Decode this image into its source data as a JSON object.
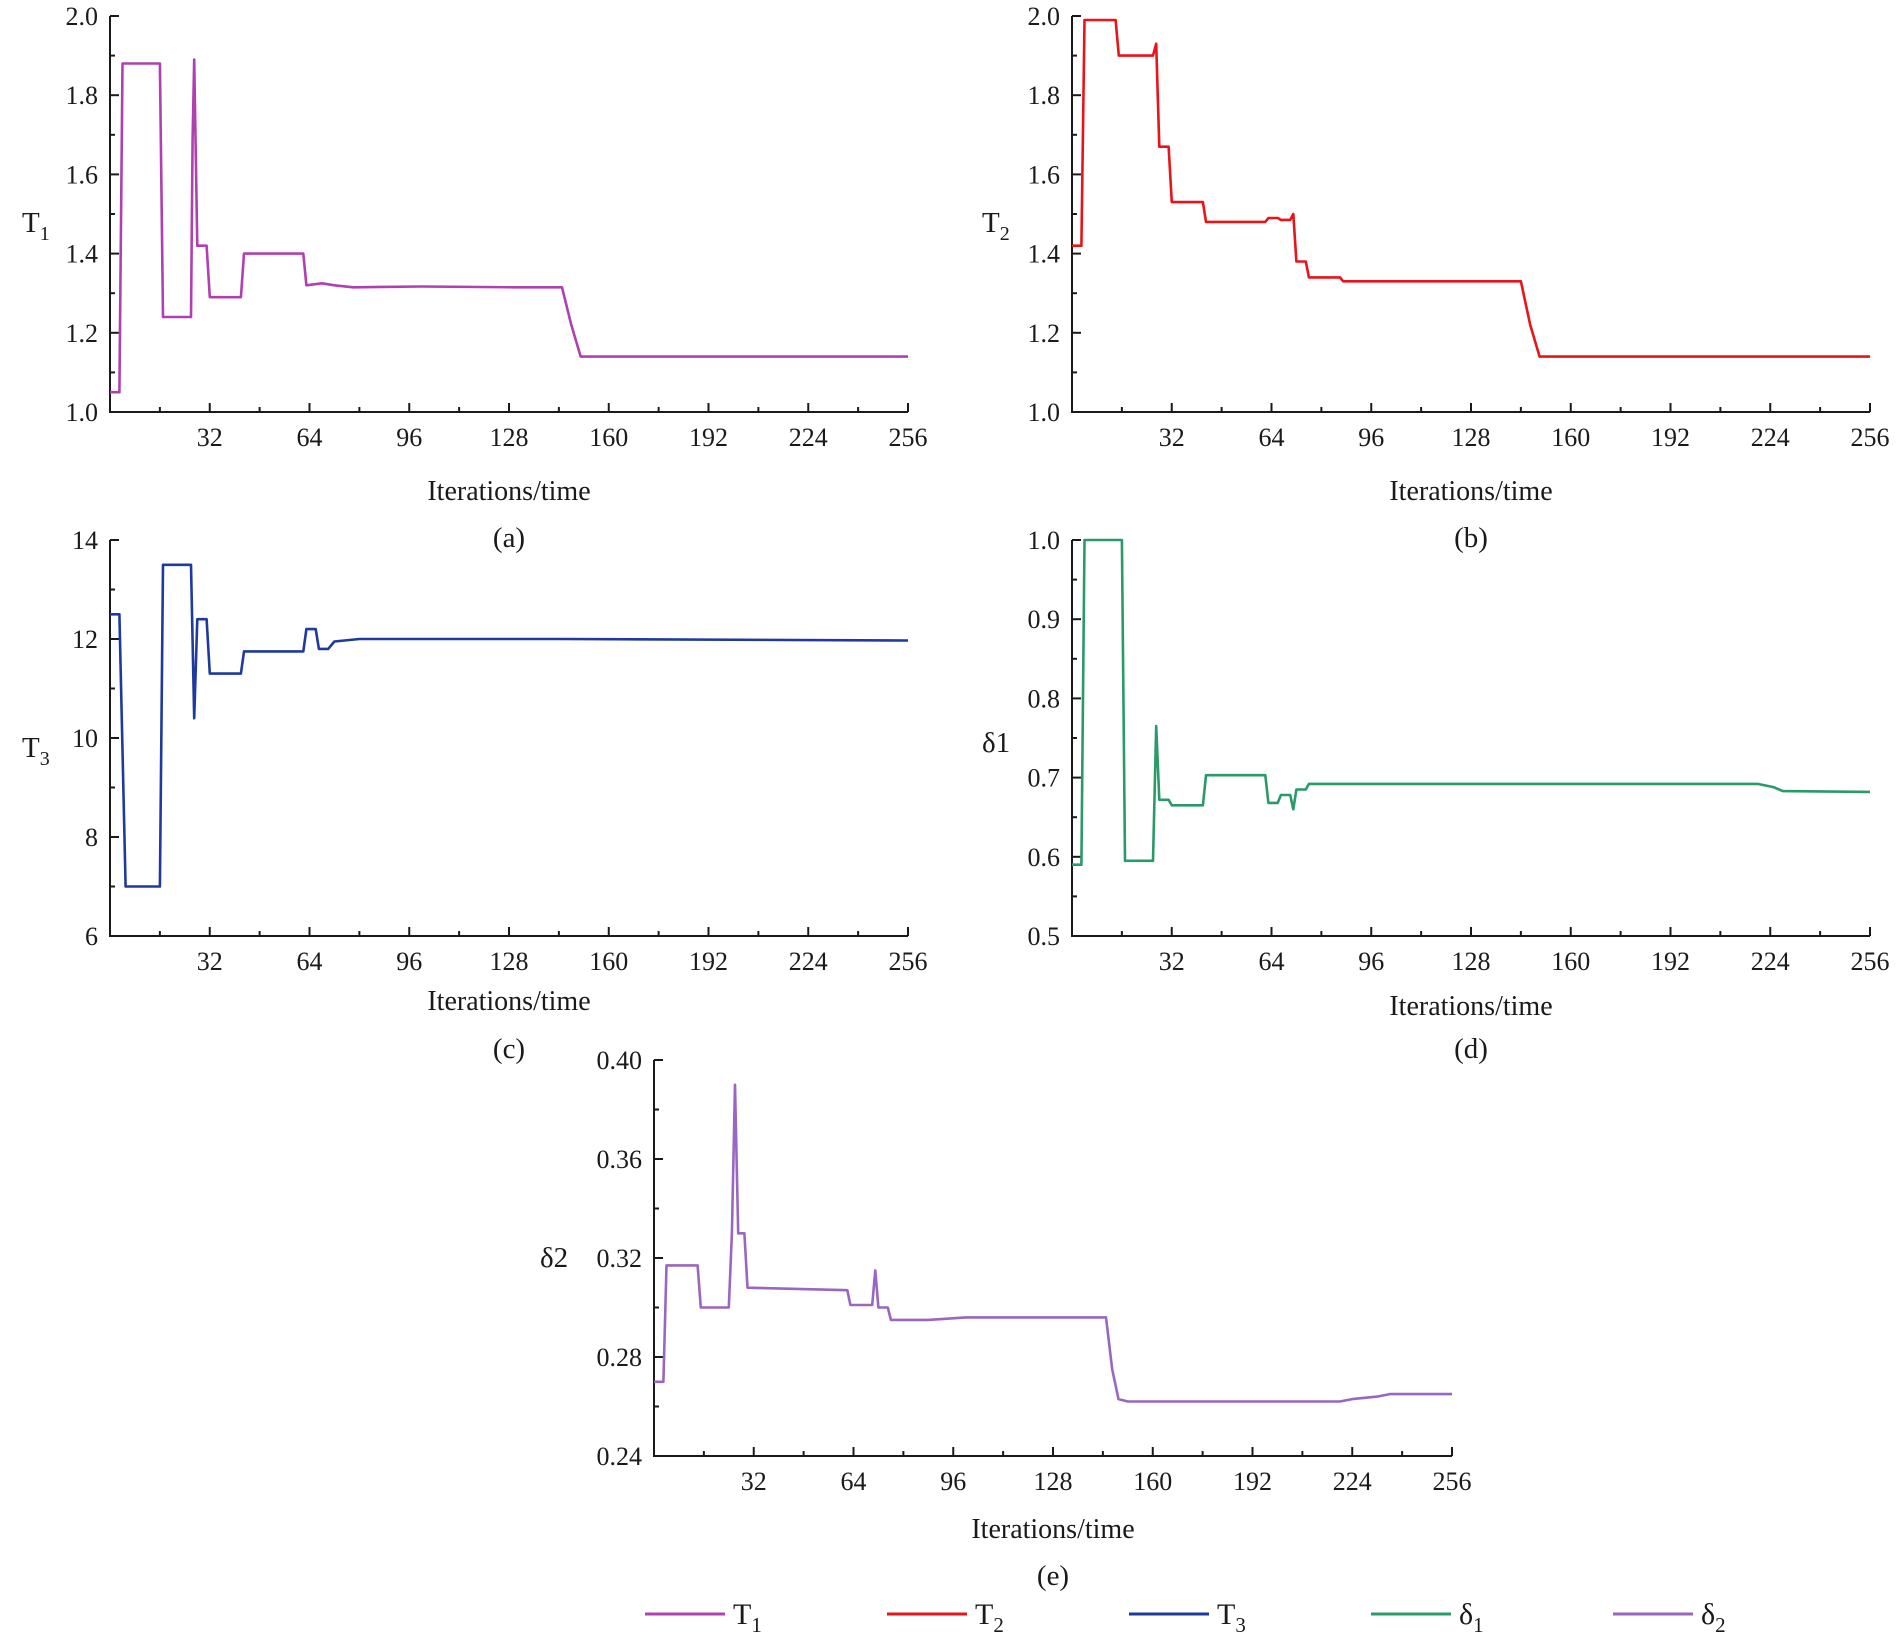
{
  "chart_data": [
    {
      "type": "line",
      "id": "a",
      "caption": "(a)",
      "ylabel": {
        "main": "T",
        "sub": "1"
      },
      "xlabel": "Iterations/time",
      "xlim": [
        0,
        256
      ],
      "ylim": [
        1.0,
        2.0
      ],
      "xticks": [
        32,
        64,
        96,
        128,
        160,
        192,
        224,
        256
      ],
      "yticks": [
        1.0,
        1.2,
        1.4,
        1.6,
        1.8,
        2.0
      ],
      "ytick_labels": [
        "1.0",
        "1.2",
        "1.4",
        "1.6",
        "1.8",
        "2.0"
      ],
      "series": {
        "name": "T1",
        "color": "#b040b0",
        "points": [
          [
            0,
            1.05
          ],
          [
            3,
            1.05
          ],
          [
            4,
            1.88
          ],
          [
            16,
            1.88
          ],
          [
            17,
            1.24
          ],
          [
            26,
            1.24
          ],
          [
            26.5,
            1.69
          ],
          [
            27,
            1.89
          ],
          [
            28,
            1.42
          ],
          [
            31,
            1.42
          ],
          [
            32,
            1.29
          ],
          [
            42,
            1.29
          ],
          [
            43,
            1.4
          ],
          [
            62,
            1.4
          ],
          [
            63,
            1.32
          ],
          [
            68,
            1.325
          ],
          [
            72,
            1.32
          ],
          [
            78,
            1.315
          ],
          [
            100,
            1.317
          ],
          [
            130,
            1.315
          ],
          [
            145,
            1.315
          ],
          [
            148,
            1.22
          ],
          [
            151,
            1.14
          ],
          [
            256,
            1.14
          ]
        ]
      }
    },
    {
      "type": "line",
      "id": "b",
      "caption": "(b)",
      "ylabel": {
        "main": "T",
        "sub": "2"
      },
      "xlabel": "Iterations/time",
      "xlim": [
        0,
        256
      ],
      "ylim": [
        1.0,
        2.0
      ],
      "xticks": [
        32,
        64,
        96,
        128,
        160,
        192,
        224,
        256
      ],
      "yticks": [
        1.0,
        1.2,
        1.4,
        1.6,
        1.8,
        2.0
      ],
      "ytick_labels": [
        "1.0",
        "1.2",
        "1.4",
        "1.6",
        "1.8",
        "2.0"
      ],
      "series": {
        "name": "T2",
        "color": "#e8141a",
        "points": [
          [
            0,
            1.42
          ],
          [
            3,
            1.42
          ],
          [
            4,
            1.99
          ],
          [
            14,
            1.99
          ],
          [
            15,
            1.9
          ],
          [
            26,
            1.9
          ],
          [
            27,
            1.93
          ],
          [
            28,
            1.67
          ],
          [
            31,
            1.67
          ],
          [
            32,
            1.53
          ],
          [
            42,
            1.53
          ],
          [
            43,
            1.48
          ],
          [
            62,
            1.48
          ],
          [
            63,
            1.49
          ],
          [
            66,
            1.49
          ],
          [
            67,
            1.485
          ],
          [
            70,
            1.485
          ],
          [
            71,
            1.5
          ],
          [
            72,
            1.38
          ],
          [
            75,
            1.38
          ],
          [
            76,
            1.34
          ],
          [
            86,
            1.34
          ],
          [
            87,
            1.33
          ],
          [
            144,
            1.33
          ],
          [
            147,
            1.22
          ],
          [
            150,
            1.14
          ],
          [
            160,
            1.14
          ],
          [
            256,
            1.14
          ]
        ]
      }
    },
    {
      "type": "line",
      "id": "c",
      "caption": "(c)",
      "ylabel": {
        "main": "T",
        "sub": "3"
      },
      "xlabel": "Iterations/time",
      "xlim": [
        0,
        256
      ],
      "ylim": [
        6,
        14
      ],
      "xticks": [
        32,
        64,
        96,
        128,
        160,
        192,
        224,
        256
      ],
      "yticks": [
        6,
        8,
        10,
        12,
        14
      ],
      "ytick_labels": [
        "6",
        "8",
        "10",
        "12",
        "14"
      ],
      "series": {
        "name": "T3",
        "color": "#1f3a9e",
        "points": [
          [
            0,
            12.5
          ],
          [
            3,
            12.5
          ],
          [
            5,
            7.0
          ],
          [
            16,
            7.0
          ],
          [
            17,
            13.5
          ],
          [
            26,
            13.5
          ],
          [
            27,
            10.4
          ],
          [
            28,
            12.4
          ],
          [
            31,
            12.4
          ],
          [
            32,
            11.3
          ],
          [
            42,
            11.3
          ],
          [
            43,
            11.75
          ],
          [
            62,
            11.75
          ],
          [
            63,
            12.2
          ],
          [
            66,
            12.2
          ],
          [
            67,
            11.8
          ],
          [
            70,
            11.8
          ],
          [
            72,
            11.95
          ],
          [
            80,
            12.0
          ],
          [
            145,
            12.0
          ],
          [
            256,
            11.97
          ]
        ]
      }
    },
    {
      "type": "line",
      "id": "d",
      "caption": "(d)",
      "ylabel": {
        "main": "δ1",
        "sub": ""
      },
      "xlabel": "Iterations/time",
      "xlim": [
        0,
        256
      ],
      "ylim": [
        0.5,
        1.0
      ],
      "xticks": [
        32,
        64,
        96,
        128,
        160,
        192,
        224,
        256
      ],
      "yticks": [
        0.5,
        0.6,
        0.7,
        0.8,
        0.9,
        1.0
      ],
      "ytick_labels": [
        "0.5",
        "0.6",
        "0.7",
        "0.8",
        "0.9",
        "1.0"
      ],
      "series": {
        "name": "δ1",
        "color": "#2a9a6a",
        "points": [
          [
            0,
            0.59
          ],
          [
            3,
            0.59
          ],
          [
            4,
            1.0
          ],
          [
            16,
            1.0
          ],
          [
            17,
            0.595
          ],
          [
            26,
            0.595
          ],
          [
            27,
            0.765
          ],
          [
            28,
            0.672
          ],
          [
            31,
            0.672
          ],
          [
            32,
            0.665
          ],
          [
            42,
            0.665
          ],
          [
            43,
            0.703
          ],
          [
            62,
            0.703
          ],
          [
            63,
            0.668
          ],
          [
            66,
            0.668
          ],
          [
            67,
            0.678
          ],
          [
            70,
            0.678
          ],
          [
            71,
            0.66
          ],
          [
            72,
            0.685
          ],
          [
            75,
            0.685
          ],
          [
            76,
            0.692
          ],
          [
            220,
            0.692
          ],
          [
            225,
            0.688
          ],
          [
            228,
            0.683
          ],
          [
            256,
            0.682
          ]
        ]
      }
    },
    {
      "type": "line",
      "id": "e",
      "caption": "(e)",
      "ylabel": {
        "main": "δ2",
        "sub": ""
      },
      "xlabel": "Iterations/time",
      "xlim": [
        0,
        256
      ],
      "ylim": [
        0.24,
        0.4
      ],
      "xticks": [
        32,
        64,
        96,
        128,
        160,
        192,
        224,
        256
      ],
      "yticks": [
        0.24,
        0.28,
        0.32,
        0.36,
        0.4
      ],
      "ytick_labels": [
        "0.24",
        "0.28",
        "0.32",
        "0.36",
        "0.40"
      ],
      "series": {
        "name": "δ2",
        "color": "#9a66c0",
        "points": [
          [
            0,
            0.27
          ],
          [
            3,
            0.27
          ],
          [
            4,
            0.317
          ],
          [
            14,
            0.317
          ],
          [
            15,
            0.3
          ],
          [
            24,
            0.3
          ],
          [
            25,
            0.33
          ],
          [
            26,
            0.39
          ],
          [
            27,
            0.33
          ],
          [
            29,
            0.33
          ],
          [
            30,
            0.308
          ],
          [
            62,
            0.307
          ],
          [
            63,
            0.301
          ],
          [
            70,
            0.301
          ],
          [
            71,
            0.315
          ],
          [
            72,
            0.3
          ],
          [
            75,
            0.3
          ],
          [
            76,
            0.295
          ],
          [
            88,
            0.295
          ],
          [
            100,
            0.296
          ],
          [
            145,
            0.296
          ],
          [
            147,
            0.275
          ],
          [
            149,
            0.263
          ],
          [
            152,
            0.262
          ],
          [
            200,
            0.262
          ],
          [
            220,
            0.262
          ],
          [
            224,
            0.263
          ],
          [
            232,
            0.264
          ],
          [
            236,
            0.265
          ],
          [
            256,
            0.265
          ]
        ]
      }
    }
  ],
  "legend": [
    {
      "main": "T",
      "sub": "1",
      "color": "#b040b0"
    },
    {
      "main": "T",
      "sub": "2",
      "color": "#e8141a"
    },
    {
      "main": "T",
      "sub": "3",
      "color": "#1f3a9e"
    },
    {
      "main": "δ",
      "sub": "1",
      "color": "#2a9a6a"
    },
    {
      "main": "δ",
      "sub": "2",
      "color": "#9a66c0"
    }
  ]
}
